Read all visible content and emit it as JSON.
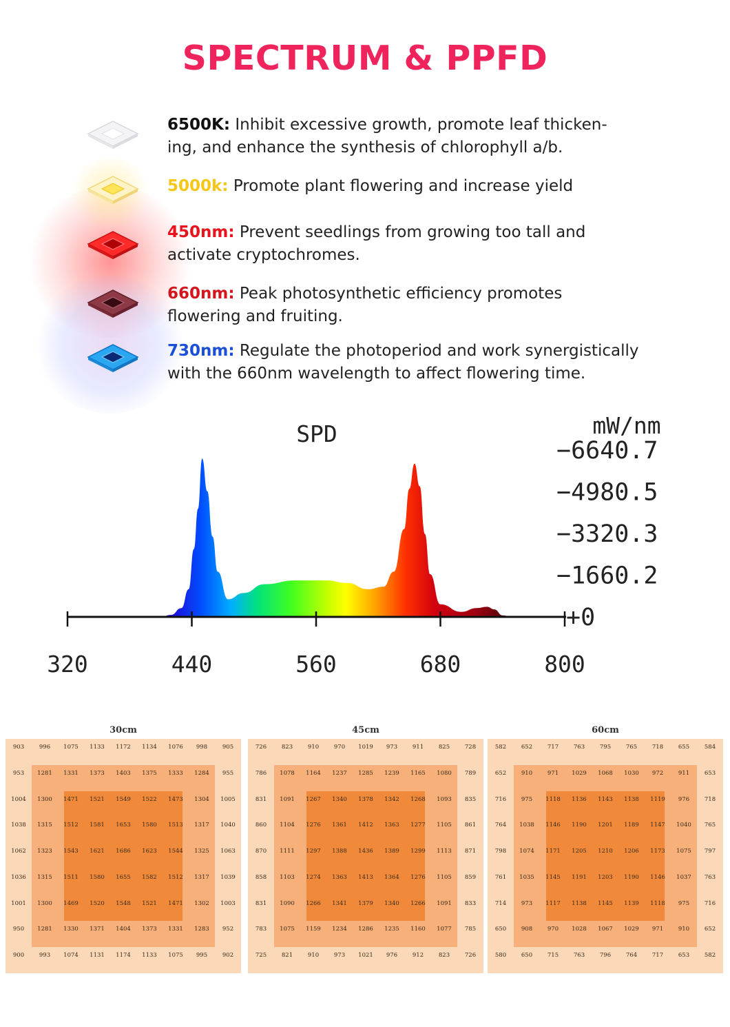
{
  "header": {
    "title": "SPECTRUM & PPFD",
    "title_color": "#f0245c"
  },
  "features": [
    {
      "key": "6500K:",
      "key_color": "#111111",
      "text": "Inhibit excessive growth, promote leaf thicken-",
      "text2": "ing, and enhance the synthesis of chlorophyll a/b.",
      "icon": "white-led-chip-icon"
    },
    {
      "key": "5000k:",
      "key_color": "#f5c518",
      "text": "Promote plant flowering and increase yield",
      "text2": "",
      "icon": "yellow-led-chip-icon"
    },
    {
      "key": "450nm:",
      "key_color": "#e8131b",
      "text": "Prevent seedlings from growing too tall and",
      "text2": "activate cryptochromes.",
      "icon": "red-led-chip-icon"
    },
    {
      "key": "660nm:",
      "key_color": "#d6141c",
      "text": "Peak photosynthetic efficiency promotes",
      "text2": "flowering and fruiting.",
      "icon": "dark-red-led-chip-icon"
    },
    {
      "key": "730nm:",
      "key_color": "#1a4fd6",
      "text": "Regulate the photoperiod and work synergistically",
      "text2": "with the 660nm wavelength to affect flowering time.",
      "icon": "blue-led-chip-icon"
    }
  ],
  "chart_data": [
    {
      "type": "area",
      "title": "SPD",
      "ylabel": "mW/nm",
      "xlim": [
        320,
        800
      ],
      "ylim": [
        0,
        6640.7
      ],
      "x_ticks": [
        "320",
        "440",
        "560",
        "680",
        "800"
      ],
      "y_ticks": [
        "6640.7",
        "4980.5",
        "3320.3",
        "1660.2",
        "0"
      ],
      "x": [
        320,
        410,
        420,
        430,
        437,
        442,
        446,
        450,
        455,
        460,
        465,
        475,
        490,
        510,
        540,
        570,
        590,
        610,
        625,
        635,
        645,
        650,
        655,
        660,
        665,
        670,
        680,
        700,
        715,
        725,
        732,
        740,
        750
      ],
      "y": [
        0,
        0,
        80,
        350,
        1100,
        2700,
        4300,
        6300,
        5000,
        3200,
        1800,
        700,
        950,
        1300,
        1450,
        1450,
        1350,
        1100,
        1200,
        1800,
        3500,
        5100,
        6100,
        5200,
        3300,
        1700,
        500,
        200,
        350,
        400,
        300,
        60,
        0
      ]
    },
    {
      "type": "heatmap",
      "title": "30cm",
      "rows": [
        [
          "903",
          "996",
          "1075",
          "1133",
          "1172",
          "1134",
          "1076",
          "998",
          "905"
        ],
        [
          "953",
          "1281",
          "1331",
          "1373",
          "1403",
          "1375",
          "1333",
          "1284",
          "955"
        ],
        [
          "1004",
          "1300",
          "1471",
          "1521",
          "1549",
          "1522",
          "1473",
          "1304",
          "1005"
        ],
        [
          "1038",
          "1315",
          "1512",
          "1581",
          "1653",
          "1580",
          "1513",
          "1317",
          "1040"
        ],
        [
          "1062",
          "1323",
          "1543",
          "1621",
          "1686",
          "1623",
          "1544",
          "1325",
          "1063"
        ],
        [
          "1036",
          "1315",
          "1511",
          "1580",
          "1655",
          "1582",
          "1512",
          "1317",
          "1039"
        ],
        [
          "1001",
          "1300",
          "1469",
          "1520",
          "1548",
          "1521",
          "1471",
          "1302",
          "1003"
        ],
        [
          "950",
          "1281",
          "1330",
          "1371",
          "1404",
          "1373",
          "1331",
          "1283",
          "952"
        ],
        [
          "900",
          "993",
          "1074",
          "1131",
          "1174",
          "1133",
          "1075",
          "995",
          "902"
        ]
      ]
    },
    {
      "type": "heatmap",
      "title": "45cm",
      "rows": [
        [
          "726",
          "823",
          "910",
          "970",
          "1019",
          "973",
          "911",
          "825",
          "728"
        ],
        [
          "786",
          "1078",
          "1164",
          "1237",
          "1285",
          "1239",
          "1165",
          "1080",
          "789"
        ],
        [
          "831",
          "1091",
          "1267",
          "1340",
          "1378",
          "1342",
          "1268",
          "1093",
          "835"
        ],
        [
          "860",
          "1104",
          "1276",
          "1361",
          "1412",
          "1363",
          "1277",
          "1105",
          "861"
        ],
        [
          "870",
          "1111",
          "1297",
          "1388",
          "1436",
          "1389",
          "1299",
          "1113",
          "871"
        ],
        [
          "858",
          "1103",
          "1274",
          "1363",
          "1413",
          "1364",
          "1276",
          "1105",
          "859"
        ],
        [
          "831",
          "1090",
          "1266",
          "1341",
          "1379",
          "1340",
          "1266",
          "1091",
          "833"
        ],
        [
          "783",
          "1075",
          "1159",
          "1234",
          "1286",
          "1235",
          "1160",
          "1077",
          "785"
        ],
        [
          "725",
          "821",
          "910",
          "973",
          "1021",
          "976",
          "912",
          "823",
          "726"
        ]
      ]
    },
    {
      "type": "heatmap",
      "title": "60cm",
      "rows": [
        [
          "582",
          "652",
          "717",
          "763",
          "795",
          "765",
          "718",
          "655",
          "584"
        ],
        [
          "652",
          "910",
          "971",
          "1029",
          "1068",
          "1030",
          "972",
          "911",
          "653"
        ],
        [
          "716",
          "975",
          "1118",
          "1136",
          "1143",
          "1138",
          "1119",
          "976",
          "718"
        ],
        [
          "764",
          "1038",
          "1146",
          "1190",
          "1201",
          "1189",
          "1147",
          "1040",
          "765"
        ],
        [
          "798",
          "1074",
          "1171",
          "1205",
          "1210",
          "1206",
          "1173",
          "1075",
          "797"
        ],
        [
          "761",
          "1035",
          "1145",
          "1191",
          "1203",
          "1190",
          "1146",
          "1037",
          "763"
        ],
        [
          "714",
          "973",
          "1117",
          "1138",
          "1145",
          "1139",
          "1118",
          "975",
          "716"
        ],
        [
          "650",
          "908",
          "970",
          "1028",
          "1067",
          "1029",
          "971",
          "910",
          "652"
        ],
        [
          "580",
          "650",
          "715",
          "763",
          "796",
          "764",
          "717",
          "653",
          "582"
        ]
      ]
    }
  ]
}
